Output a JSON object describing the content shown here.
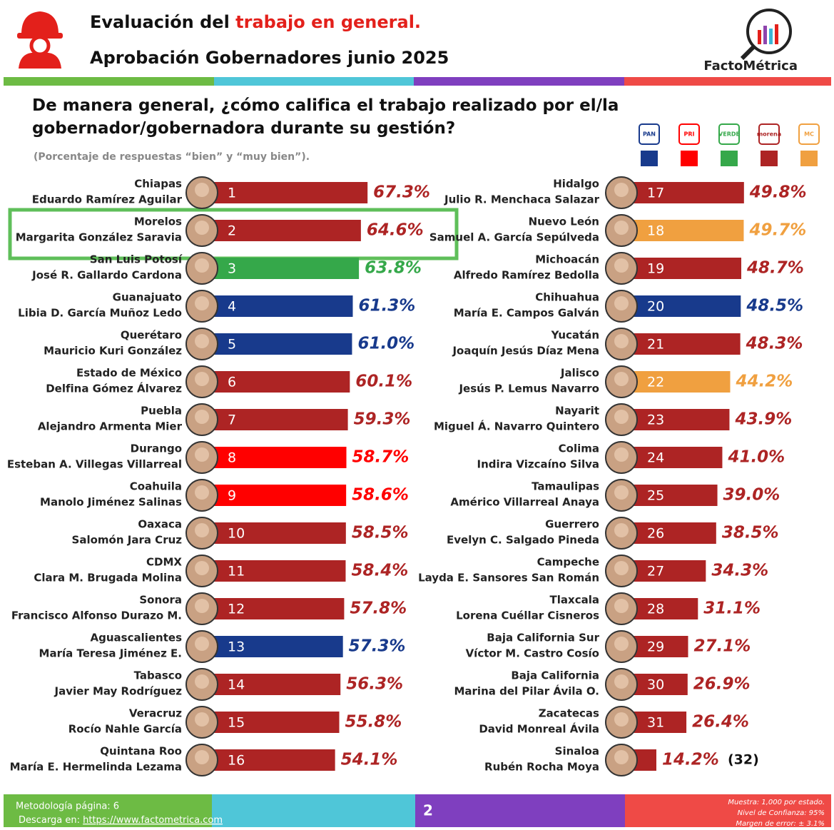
{
  "header": {
    "title_part1": "Evaluación del",
    "title_part2": "trabajo en general.",
    "subtitle": "Aprobación Gobernadores junio 2025",
    "brand": "FactoMétrica"
  },
  "chart_data": {
    "type": "bar",
    "title": "De manera general, ¿cómo califica el trabajo realizado por el/la gobernador/gobernadora durante su gestión?",
    "note": "(Porcentaje de respuestas “bien” y “muy bien”).",
    "legend": [
      {
        "name": "PAN",
        "color": "#183a8c"
      },
      {
        "name": "PRI",
        "color": "#ff0000"
      },
      {
        "name": "VERDE",
        "color": "#35a84a"
      },
      {
        "name": "morena",
        "color": "#ad2424"
      },
      {
        "name": "MC",
        "color": "#f0a040"
      }
    ],
    "categories": [
      "Chiapas",
      "Morelos",
      "San Luis Potosí",
      "Guanajuato",
      "Querétaro",
      "Estado de México",
      "Puebla",
      "Durango",
      "Coahuila",
      "Oaxaca",
      "CDMX",
      "Sonora",
      "Aguascalientes",
      "Tabasco",
      "Veracruz",
      "Quintana Roo",
      "Hidalgo",
      "Nuevo León",
      "Michoacán",
      "Chihuahua",
      "Yucatán",
      "Jalisco",
      "Nayarit",
      "Colima",
      "Tamaulipas",
      "Guerrero",
      "Campeche",
      "Tlaxcala",
      "Baja California Sur",
      "Baja California",
      "Zacatecas",
      "Sinaloa"
    ],
    "governors": [
      "Eduardo Ramírez Aguilar",
      "Margarita González Saravia",
      "José R. Gallardo Cardona",
      "Libia D. García Muñoz Ledo",
      "Mauricio Kuri González",
      "Delfina Gómez Álvarez",
      "Alejandro Armenta Mier",
      "Esteban A. Villegas Villarreal",
      "Manolo Jiménez Salinas",
      "Salomón Jara Cruz",
      "Clara M. Brugada Molina",
      "Francisco Alfonso Durazo M.",
      "María Teresa Jiménez E.",
      "Javier May Rodríguez",
      "Rocío Nahle García",
      "María E. Hermelinda Lezama",
      "Julio R. Menchaca Salazar",
      "Samuel A. García Sepúlveda",
      "Alfredo Ramírez Bedolla",
      "María E. Campos Galván",
      "Joaquín Jesús Díaz Mena",
      "Jesús P. Lemus Navarro",
      "Miguel Á. Navarro Quintero",
      "Indira Vizcaíno Silva",
      "Américo Villarreal Anaya",
      "Evelyn C. Salgado Pineda",
      "Layda E. Sansores San Román",
      "Lorena Cuéllar Cisneros",
      "Víctor M. Castro Cosío",
      "Marina del Pilar Ávila O.",
      "David Monreal Ávila",
      "Rubén Rocha Moya"
    ],
    "ranks": [
      1,
      2,
      3,
      4,
      5,
      6,
      7,
      8,
      9,
      10,
      11,
      12,
      13,
      14,
      15,
      16,
      17,
      18,
      19,
      20,
      21,
      22,
      23,
      24,
      25,
      26,
      27,
      28,
      29,
      30,
      31,
      {
        "value": 32,
        "label": "(32)"
      }
    ],
    "values": [
      67.3,
      64.6,
      63.8,
      61.3,
      61.0,
      60.1,
      59.3,
      58.7,
      58.6,
      58.5,
      58.4,
      57.8,
      57.3,
      56.3,
      55.8,
      54.1,
      49.8,
      49.7,
      48.7,
      48.5,
      48.3,
      44.2,
      43.9,
      41.0,
      39.0,
      38.5,
      34.3,
      31.1,
      27.1,
      26.9,
      26.4,
      14.2
    ],
    "value_labels": [
      "67.3%",
      "64.6%",
      "63.8%",
      "61.3%",
      "61.0%",
      "60.1%",
      "59.3%",
      "58.7%",
      "58.6%",
      "58.5%",
      "58.4%",
      "57.8%",
      "57.3%",
      "56.3%",
      "55.8%",
      "54.1%",
      "49.8%",
      "49.7%",
      "48.7%",
      "48.5%",
      "48.3%",
      "44.2%",
      "43.9%",
      "41.0%",
      "39.0%",
      "38.5%",
      "34.3%",
      "31.1%",
      "27.1%",
      "26.9%",
      "26.4%",
      "14.2%"
    ],
    "colors": [
      "#ad2424",
      "#ad2424",
      "#35a84a",
      "#183a8c",
      "#183a8c",
      "#ad2424",
      "#ad2424",
      "#ff0000",
      "#ff0000",
      "#ad2424",
      "#ad2424",
      "#ad2424",
      "#183a8c",
      "#ad2424",
      "#ad2424",
      "#ad2424",
      "#ad2424",
      "#f0a040",
      "#ad2424",
      "#183a8c",
      "#ad2424",
      "#f0a040",
      "#ad2424",
      "#ad2424",
      "#ad2424",
      "#ad2424",
      "#ad2424",
      "#ad2424",
      "#ad2424",
      "#ad2424",
      "#ad2424",
      "#ad2424"
    ]
  },
  "footer": {
    "methodology": "Metodología página: 6",
    "download": "Descarga en:",
    "url": "https://www.factometrica.com",
    "page": "2",
    "sample": "Muestra: 1,000 por estado.",
    "confidence": "Nivel de Confianza: 95%",
    "error": "Margen de error: ± 3.1%"
  }
}
